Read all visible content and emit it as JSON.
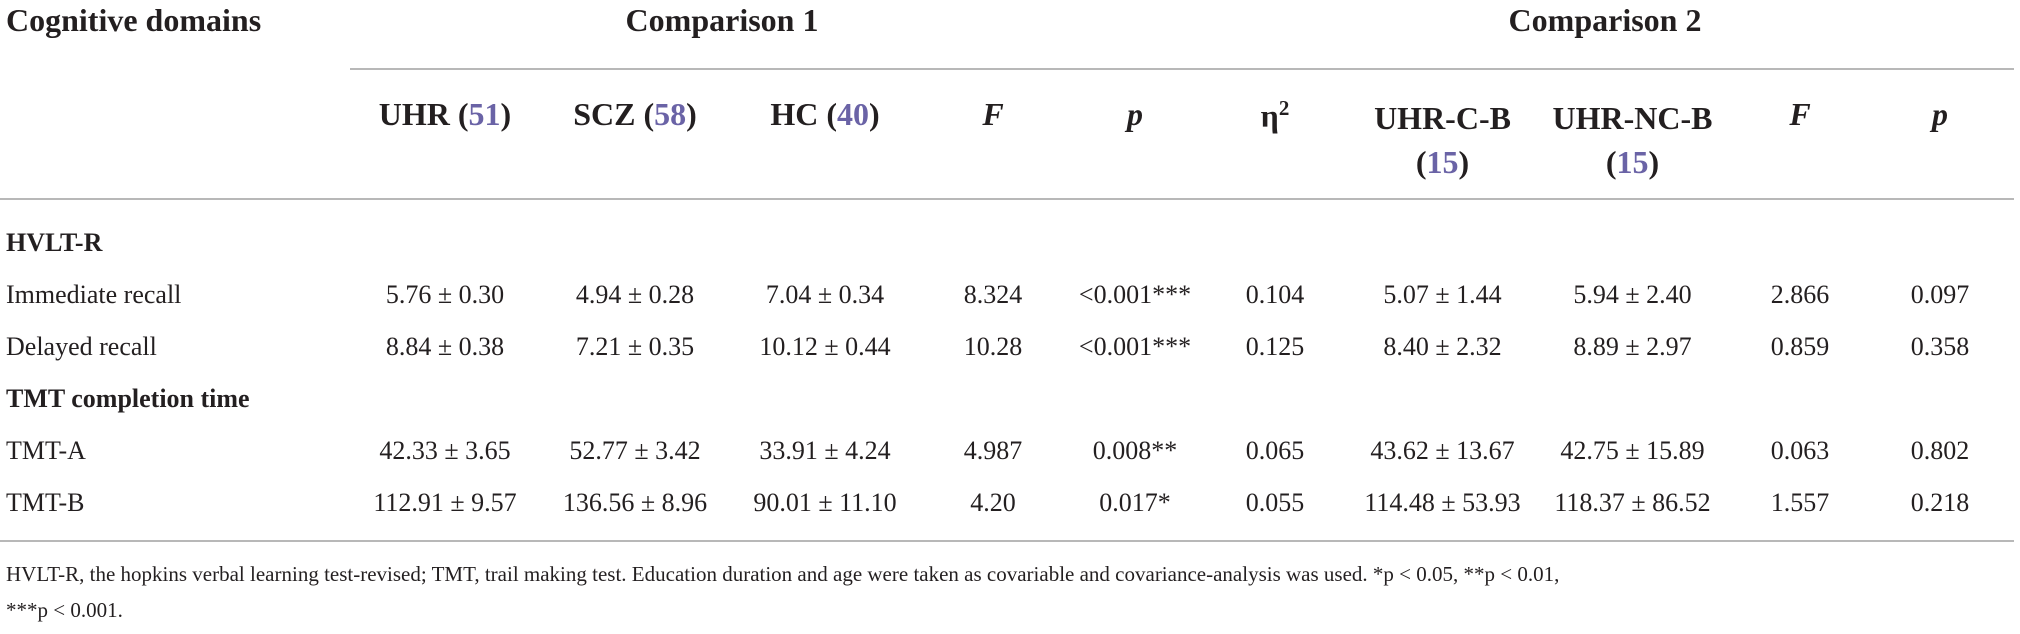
{
  "header": {
    "domains": "Cognitive domains",
    "comparison1": "Comparison 1",
    "comparison2": "Comparison 2"
  },
  "columns": {
    "uhr": {
      "label": "UHR",
      "n": "51"
    },
    "scz": {
      "label": "SCZ",
      "n": "58"
    },
    "hc": {
      "label": "HC",
      "n": "40"
    },
    "f1": "F",
    "p1": "p",
    "eta": "η",
    "eta_sup": "2",
    "uhr_c_b": {
      "label": "UHR-C-B",
      "n": "15"
    },
    "uhr_nc_b": {
      "label": "UHR-NC-B",
      "n": "15"
    },
    "f2": "F",
    "p2": "p"
  },
  "sections": [
    {
      "title": "HVLT-R",
      "rows": [
        {
          "label": "Immediate recall",
          "cells": [
            "5.76 ± 0.30",
            "4.94 ± 0.28",
            "7.04 ± 0.34",
            "8.324",
            "<0.001***",
            "0.104",
            "5.07 ± 1.44",
            "5.94 ± 2.40",
            "2.866",
            "0.097"
          ]
        },
        {
          "label": "Delayed recall",
          "cells": [
            "8.84 ± 0.38",
            "7.21 ± 0.35",
            "10.12 ± 0.44",
            "10.28",
            "<0.001***",
            "0.125",
            "8.40 ± 2.32",
            "8.89 ± 2.97",
            "0.859",
            "0.358"
          ]
        }
      ]
    },
    {
      "title": "TMT completion time",
      "rows": [
        {
          "label": "TMT-A",
          "cells": [
            "42.33 ± 3.65",
            "52.77 ± 3.42",
            "33.91 ± 4.24",
            "4.987",
            "0.008**",
            "0.065",
            "43.62 ± 13.67",
            "42.75 ± 15.89",
            "0.063",
            "0.802"
          ]
        },
        {
          "label": "TMT-B",
          "cells": [
            "112.91 ± 9.57",
            "136.56 ± 8.96",
            "90.01 ± 11.10",
            "4.20",
            "0.017*",
            "0.055",
            "114.48 ± 53.93",
            "118.37 ± 86.52",
            "1.557",
            "0.218"
          ]
        }
      ]
    }
  ],
  "footnote": {
    "line1": "HVLT-R, the hopkins verbal learning test-revised; TMT, trail making test. Education duration and age were taken as covariable and covariance-analysis was used. *p < 0.05, **p < 0.01,",
    "line2": "***p < 0.001."
  },
  "colors": {
    "n_accent": "#6a63a6",
    "rule": "#b8b8b8",
    "text": "#231f20"
  }
}
